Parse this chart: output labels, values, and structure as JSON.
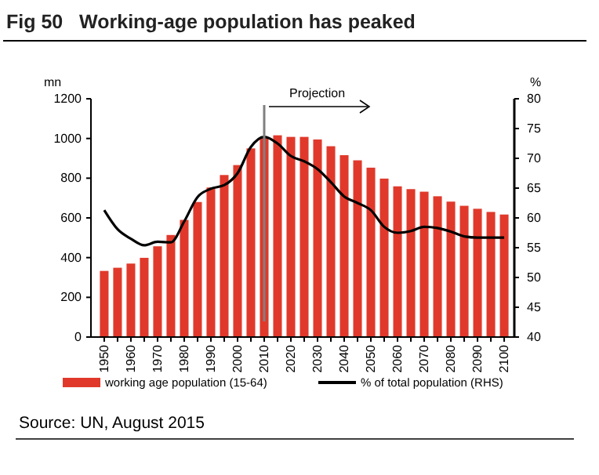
{
  "chart_data": {
    "type": "bar",
    "title": "Fig 50   Working-age population has peaked",
    "ylabel": "mn",
    "y2label": "%",
    "categories": [
      "1950",
      null,
      "1960",
      null,
      "1970",
      null,
      "1980",
      null,
      "1990",
      null,
      "2000",
      null,
      "2010",
      null,
      "2020",
      null,
      "2030",
      null,
      "2040",
      null,
      "2050",
      null,
      "2060",
      null,
      "2070",
      null,
      "2080",
      null,
      "2090",
      null,
      "2100"
    ],
    "series": [
      {
        "name": "working age population (15-64)",
        "color": "#e0392b",
        "values": [
          333,
          349,
          370,
          399,
          457,
          514,
          590,
          680,
          753,
          816,
          866,
          950,
          1003,
          1016,
          1008,
          1008,
          995,
          961,
          916,
          890,
          853,
          798,
          759,
          745,
          732,
          709,
          682,
          661,
          646,
          630,
          617
        ]
      },
      {
        "name": "% of total population (RHS)",
        "type": "line",
        "axis": "y2",
        "color": "#000000",
        "values": [
          61.3,
          58.1,
          56.5,
          55.4,
          56.0,
          55.9,
          59.4,
          63.5,
          64.9,
          65.5,
          67.5,
          71.9,
          73.6,
          72.5,
          70.4,
          69.5,
          68.2,
          66.0,
          63.6,
          62.5,
          61.3,
          58.5,
          57.5,
          57.8,
          58.5,
          58.3,
          57.7,
          56.9,
          56.7,
          56.7,
          56.7
        ]
      }
    ],
    "ylim": [
      0,
      1200
    ],
    "yticks": [
      0,
      200,
      400,
      600,
      800,
      1000,
      1200
    ],
    "y2lim": [
      40,
      80
    ],
    "y2ticks": [
      40,
      45,
      50,
      55,
      60,
      65,
      70,
      75,
      80
    ],
    "ref_lines": [
      {
        "axis": "x",
        "value": "2010",
        "color": "#808080"
      }
    ],
    "annotations": [
      "Projection",
      "Source: UN, August 2015"
    ],
    "legend": "bottom",
    "grid": false
  }
}
